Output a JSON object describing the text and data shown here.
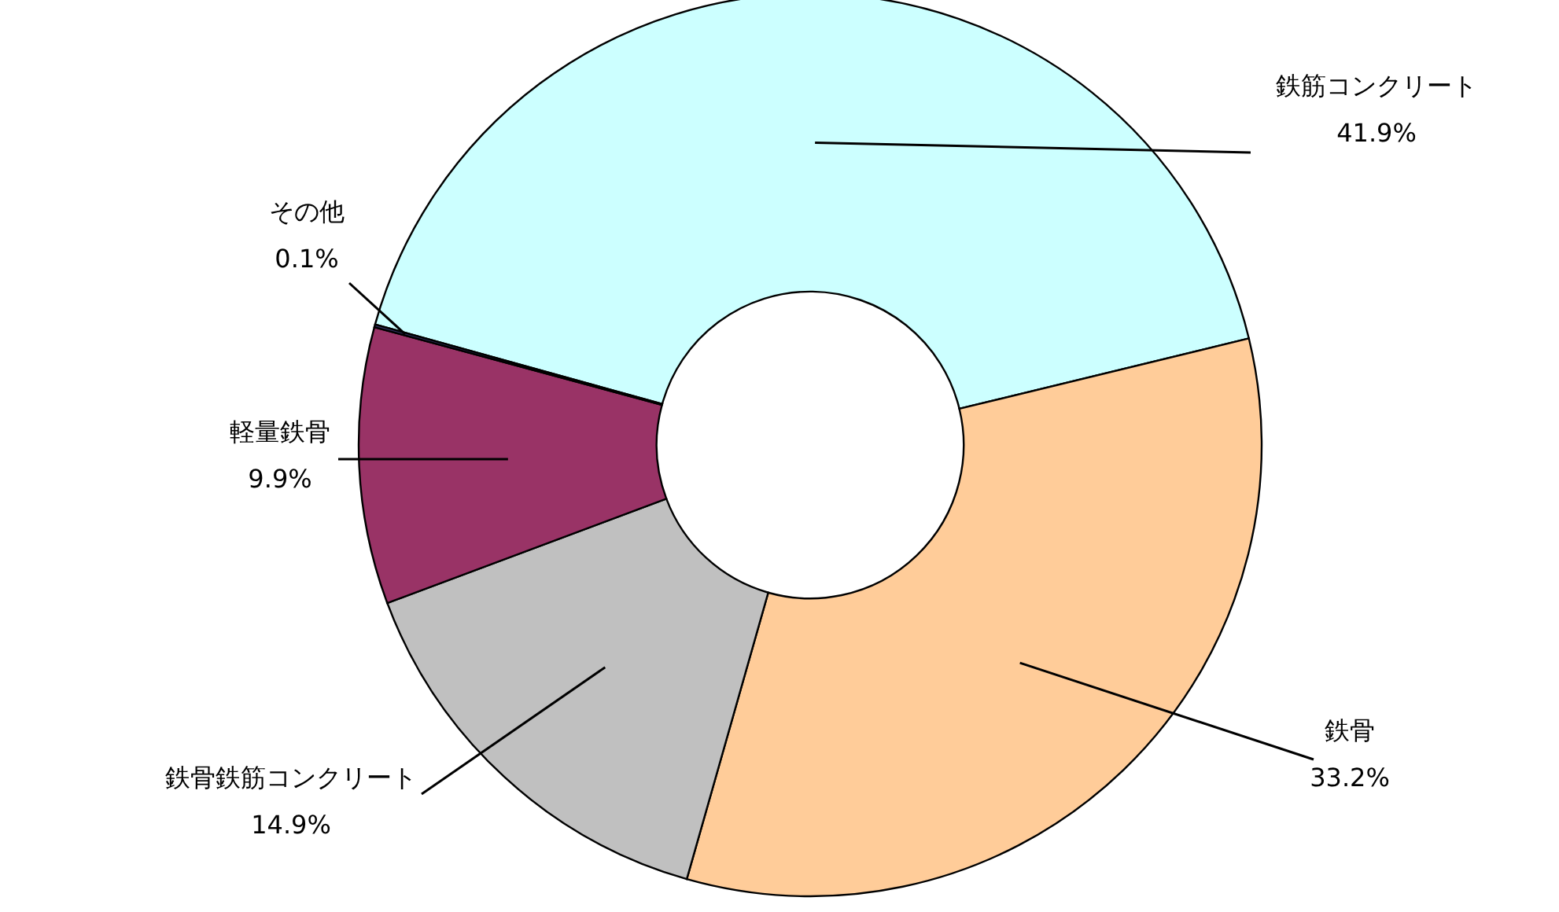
{
  "chart_data": {
    "type": "donut",
    "categories": [
      "鉄筋コンクリート",
      "鉄骨",
      "鉄骨鉄筋コンクリート",
      "軽量鉄骨",
      "その他"
    ],
    "values": [
      41.9,
      33.2,
      14.9,
      9.9,
      0.1
    ],
    "colors": [
      "#ccffff",
      "#ffcc99",
      "#c0c0c0",
      "#993366",
      "#333366"
    ],
    "value_labels": [
      "41.9%",
      "33.2%",
      "14.9%",
      "9.9%",
      "0.1%"
    ]
  }
}
